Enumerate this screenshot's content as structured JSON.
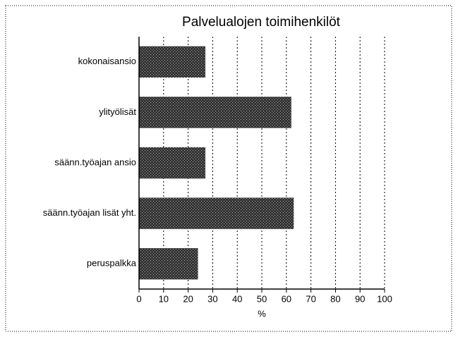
{
  "chart_data": {
    "type": "bar",
    "orientation": "horizontal",
    "title": "Palvelualojen toimihenkilöt",
    "x_label": "%",
    "categories": [
      "kokonaisansio",
      "ylityölisät",
      "säänn.työajan ansio",
      "säänn.työajan lisät yht.",
      "peruspalkka"
    ],
    "values": [
      27,
      62,
      27,
      63,
      24
    ],
    "color": "#333333",
    "xlim": [
      0,
      100
    ],
    "xticks": [
      0,
      10,
      20,
      30,
      40,
      50,
      60,
      70,
      80,
      90,
      100
    ],
    "grid": true
  }
}
